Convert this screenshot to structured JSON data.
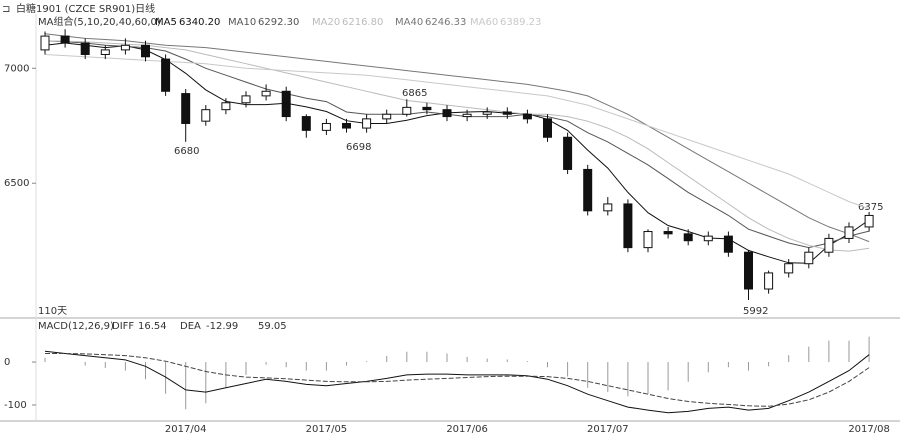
{
  "chart_data": [
    {
      "type": "candlestick",
      "title": "白糖1901 (CZCE SR901)日线",
      "legend_title": "MA组合(5,10,20,40,60,0)",
      "volume_note": "110天",
      "categories": [
        null,
        null,
        null,
        null,
        null,
        null,
        null,
        "2017/04",
        null,
        null,
        null,
        null,
        null,
        null,
        "2017/05",
        null,
        null,
        null,
        null,
        null,
        null,
        "2017/06",
        null,
        null,
        null,
        null,
        null,
        null,
        "2017/07",
        null,
        null,
        null,
        null,
        null,
        null,
        null,
        null,
        null,
        null,
        null,
        null,
        "2017/08"
      ],
      "open": [
        7080,
        7140,
        7110,
        7060,
        7080,
        7100,
        7040,
        6890,
        6770,
        6820,
        6850,
        6880,
        6900,
        6790,
        6730,
        6760,
        6740,
        6780,
        6800,
        6830,
        6820,
        6790,
        6800,
        6810,
        6800,
        6780,
        6700,
        6560,
        6380,
        6410,
        6220,
        6290,
        6280,
        6250,
        6270,
        6200,
        6040,
        6110,
        6150,
        6200,
        6260,
        6310
      ],
      "high": [
        7160,
        7170,
        7130,
        7100,
        7130,
        7120,
        7060,
        6910,
        6840,
        6870,
        6900,
        6930,
        6920,
        6800,
        6780,
        6780,
        6800,
        6820,
        6865,
        6850,
        6840,
        6820,
        6830,
        6830,
        6820,
        6800,
        6720,
        6580,
        6440,
        6430,
        6300,
        6310,
        6300,
        6290,
        6290,
        6210,
        6120,
        6170,
        6220,
        6280,
        6330,
        6375
      ],
      "low": [
        7060,
        7090,
        7040,
        7040,
        7060,
        7030,
        6880,
        6680,
        6750,
        6800,
        6830,
        6860,
        6770,
        6698,
        6710,
        6720,
        6720,
        6760,
        6790,
        6800,
        6770,
        6770,
        6780,
        6780,
        6760,
        6680,
        6540,
        6360,
        6360,
        6200,
        6200,
        6260,
        6230,
        6230,
        6180,
        5992,
        6020,
        6090,
        6130,
        6180,
        6240,
        6290
      ],
      "close": [
        7140,
        7110,
        7060,
        7080,
        7100,
        7050,
        6900,
        6760,
        6820,
        6850,
        6880,
        6900,
        6790,
        6730,
        6760,
        6740,
        6780,
        6800,
        6830,
        6820,
        6790,
        6800,
        6810,
        6800,
        6780,
        6700,
        6560,
        6380,
        6410,
        6220,
        6290,
        6280,
        6250,
        6270,
        6200,
        6040,
        6110,
        6150,
        6200,
        6260,
        6310,
        6360
      ],
      "series": [
        {
          "name": "MA5",
          "legend_value": "6340.20",
          "color": "#111111",
          "values": [
            7100,
            7110,
            7100,
            7090,
            7098,
            7080,
            7038,
            6978,
            6906,
            6856,
            6842,
            6842,
            6848,
            6832,
            6812,
            6772,
            6760,
            6760,
            6774,
            6794,
            6806,
            6810,
            6812,
            6804,
            6802,
            6778,
            6730,
            6644,
            6566,
            6460,
            6372,
            6316,
            6290,
            6262,
            6258,
            6208,
            6180,
            6154,
            6152,
            6230,
            6280,
            6340
          ]
        },
        {
          "name": "MA10",
          "legend_value": "6292.30",
          "color": "#555555",
          "values": [
            7120,
            7115,
            7110,
            7100,
            7095,
            7090,
            7075,
            7040,
            7000,
            6970,
            6940,
            6910,
            6890,
            6870,
            6855,
            6810,
            6800,
            6800,
            6800,
            6810,
            6800,
            6790,
            6790,
            6790,
            6800,
            6790,
            6770,
            6720,
            6680,
            6630,
            6580,
            6520,
            6460,
            6410,
            6360,
            6300,
            6270,
            6240,
            6220,
            6240,
            6270,
            6292
          ]
        },
        {
          "name": "MA20",
          "legend_value": "6216.80",
          "color": "#bbbbbb",
          "values": [
            7120,
            7118,
            7115,
            7110,
            7105,
            7100,
            7090,
            7080,
            7060,
            7040,
            7020,
            7000,
            6980,
            6960,
            6940,
            6920,
            6900,
            6880,
            6860,
            6850,
            6840,
            6830,
            6820,
            6810,
            6800,
            6800,
            6790,
            6770,
            6740,
            6700,
            6650,
            6590,
            6530,
            6470,
            6410,
            6350,
            6300,
            6260,
            6230,
            6210,
            6205,
            6217
          ]
        },
        {
          "name": "MA40",
          "legend_value": "6246.33",
          "color": "#777777",
          "values": [
            7150,
            7140,
            7130,
            7125,
            7120,
            7110,
            7100,
            7095,
            7090,
            7080,
            7070,
            7060,
            7050,
            7040,
            7030,
            7020,
            7010,
            7000,
            6990,
            6980,
            6970,
            6960,
            6950,
            6940,
            6930,
            6915,
            6900,
            6880,
            6840,
            6800,
            6750,
            6700,
            6650,
            6600,
            6550,
            6500,
            6450,
            6400,
            6350,
            6310,
            6280,
            6246
          ]
        },
        {
          "name": "MA60",
          "legend_value": "6389.23",
          "color": "#c8c8c8",
          "values": [
            7060,
            7055,
            7050,
            7045,
            7040,
            7035,
            7030,
            7025,
            7020,
            7010,
            7000,
            6995,
            6990,
            6985,
            6980,
            6975,
            6970,
            6960,
            6950,
            6940,
            6930,
            6920,
            6910,
            6900,
            6890,
            6880,
            6860,
            6840,
            6810,
            6780,
            6750,
            6720,
            6690,
            6660,
            6630,
            6600,
            6570,
            6540,
            6500,
            6460,
            6420,
            6389
          ]
        }
      ],
      "annotations": [
        "6680",
        "6698",
        "6865",
        "5992",
        "6375"
      ],
      "ylim": [
        5940,
        7210
      ],
      "yticks": [
        7000,
        6500
      ],
      "grid": false,
      "up_color": "#ffffff",
      "down_color": "#111111"
    },
    {
      "type": "macd",
      "title": "MACD(12,26,9)",
      "series": [
        {
          "name": "DIFF",
          "legend_value": "16.54",
          "color": "#111111",
          "values": [
            25,
            20,
            15,
            10,
            5,
            -10,
            -35,
            -65,
            -70,
            -60,
            -50,
            -40,
            -45,
            -52,
            -55,
            -50,
            -45,
            -38,
            -30,
            -28,
            -28,
            -30,
            -30,
            -30,
            -32,
            -40,
            -55,
            -75,
            -90,
            -105,
            -112,
            -118,
            -115,
            -108,
            -105,
            -112,
            -108,
            -90,
            -70,
            -45,
            -20,
            17
          ]
        },
        {
          "name": "DEA",
          "legend_value": "-12.99",
          "color": "#444444",
          "values": [
            20,
            20,
            19,
            17,
            15,
            10,
            2,
            -10,
            -22,
            -30,
            -35,
            -37,
            -39,
            -42,
            -45,
            -46,
            -46,
            -45,
            -42,
            -40,
            -38,
            -36,
            -34,
            -33,
            -33,
            -34,
            -38,
            -45,
            -55,
            -65,
            -75,
            -85,
            -92,
            -96,
            -99,
            -102,
            -103,
            -98,
            -88,
            -70,
            -45,
            -13
          ]
        }
      ],
      "histogram": {
        "legend_value": "59.05",
        "color": "#999999",
        "values": [
          10,
          0,
          -8,
          -14,
          -20,
          -40,
          -74,
          -110,
          -96,
          -60,
          -30,
          -6,
          -12,
          -20,
          -20,
          -8,
          2,
          14,
          24,
          24,
          20,
          12,
          8,
          6,
          2,
          -12,
          -34,
          -60,
          -70,
          -80,
          -74,
          -66,
          -46,
          -24,
          -12,
          -20,
          -10,
          16,
          36,
          50,
          50,
          59.05
        ]
      },
      "ylim": [
        -135,
        63
      ],
      "yticks": [
        0,
        -100
      ]
    }
  ]
}
